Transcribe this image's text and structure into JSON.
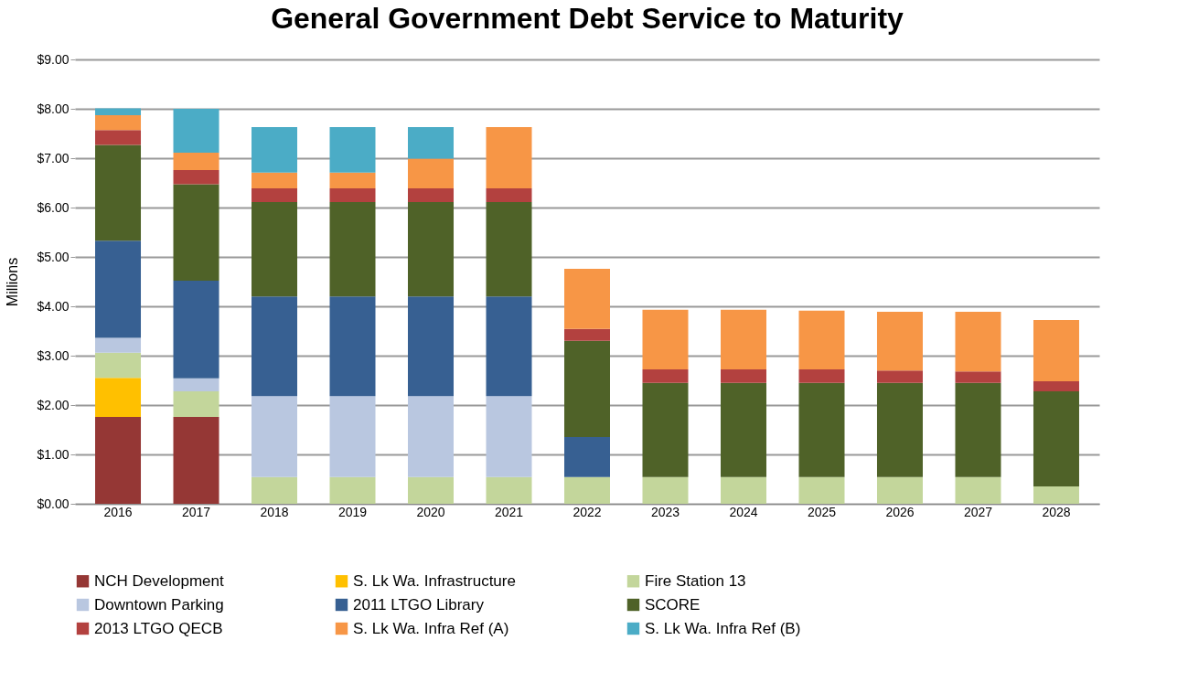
{
  "chart_data": {
    "type": "bar",
    "title": "General Government Debt Service to Maturity",
    "ylabel": "Millions",
    "stacked": true,
    "grid": "y",
    "legend": "bottom",
    "categories": [
      "2016",
      "2017",
      "2018",
      "2019",
      "2020",
      "2021",
      "2022",
      "2023",
      "2024",
      "2025",
      "2026",
      "2027",
      "2028"
    ],
    "ylim": [
      0,
      9
    ],
    "yticks": [
      {
        "value": 0,
        "label": "$0.00"
      },
      {
        "value": 1,
        "label": "$1.00"
      },
      {
        "value": 2,
        "label": "$2.00"
      },
      {
        "value": 3,
        "label": "$3.00"
      },
      {
        "value": 4,
        "label": "$4.00"
      },
      {
        "value": 5,
        "label": "$5.00"
      },
      {
        "value": 6,
        "label": "$6.00"
      },
      {
        "value": 7,
        "label": "$7.00"
      },
      {
        "value": 8,
        "label": "$8.00"
      },
      {
        "value": 9,
        "label": "$9.00"
      }
    ],
    "series": [
      {
        "name": "NCH Development",
        "color": "#953735",
        "values": [
          1.76,
          1.76,
          null,
          null,
          null,
          null,
          null,
          null,
          null,
          null,
          null,
          null,
          null
        ]
      },
      {
        "name": "S. Lk Wa. Infrastructure",
        "color": "#ffc000",
        "values": [
          0.79,
          null,
          null,
          null,
          null,
          null,
          null,
          null,
          null,
          null,
          null,
          null,
          null
        ]
      },
      {
        "name": "Fire Station 13",
        "color": "#c3d69b",
        "values": [
          0.51,
          0.52,
          0.54,
          0.54,
          0.54,
          0.54,
          0.54,
          0.54,
          0.54,
          0.54,
          0.54,
          0.54,
          0.35
        ]
      },
      {
        "name": "Downtown Parking",
        "color": "#b9c7e0",
        "values": [
          0.3,
          0.26,
          1.64,
          1.64,
          1.64,
          1.64,
          null,
          null,
          null,
          null,
          null,
          null,
          null
        ]
      },
      {
        "name": " 2011 LTGO Library",
        "color": "#376092",
        "values": [
          1.97,
          1.98,
          2.02,
          2.02,
          2.02,
          2.02,
          0.81,
          null,
          null,
          null,
          null,
          null,
          null
        ]
      },
      {
        "name": "SCORE",
        "color": "#4f6228",
        "values": [
          1.94,
          1.95,
          1.91,
          1.91,
          1.91,
          1.91,
          1.95,
          1.91,
          1.91,
          1.91,
          1.91,
          1.91,
          1.93
        ]
      },
      {
        "name": "2013 LTGO QECB",
        "color": "#b3413f",
        "values": [
          0.3,
          0.29,
          0.28,
          0.28,
          0.28,
          0.28,
          0.24,
          0.27,
          0.27,
          0.27,
          0.25,
          0.23,
          0.2
        ]
      },
      {
        "name": "S. Lk Wa. Infra Ref (A)",
        "color": "#f79646",
        "values": [
          0.3,
          0.35,
          0.32,
          0.32,
          0.6,
          1.24,
          1.22,
          1.21,
          1.21,
          1.19,
          1.19,
          1.21,
          1.24
        ]
      },
      {
        "name": "S. Lk Wa. Infra Ref (B)",
        "color": "#4bacc6",
        "values": [
          0.14,
          0.89,
          0.92,
          0.92,
          0.64,
          null,
          null,
          null,
          null,
          null,
          null,
          null,
          null
        ]
      }
    ]
  }
}
